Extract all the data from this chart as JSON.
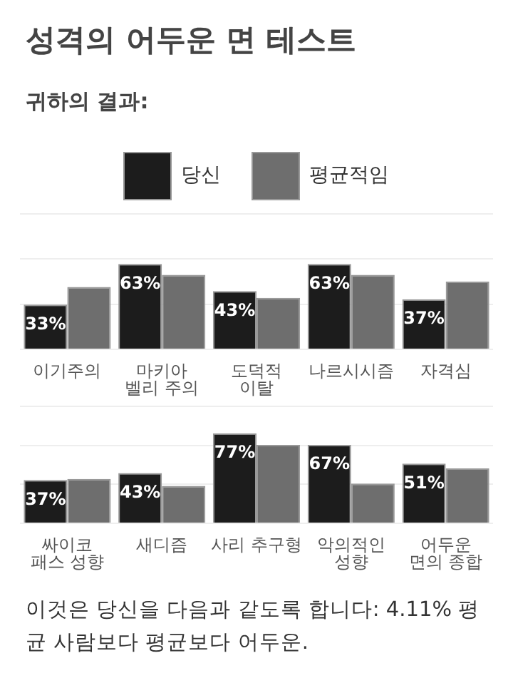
{
  "chart_data": [
    {
      "type": "bar",
      "title": "성격의 어두운 면 테스트",
      "subtitle": "귀하의 결과:",
      "categories": [
        "이기주의",
        "마키아\n벨리 주의",
        "도덕적\n이탈",
        "나르시시즘",
        "자격심"
      ],
      "series": [
        {
          "name": "당신",
          "color": "#1c1c1c",
          "values": [
            33,
            63,
            43,
            63,
            37
          ],
          "value_labels": [
            "33%",
            "63%",
            "43%",
            "63%",
            "37%"
          ]
        },
        {
          "name": "평균적임",
          "color": "#6e6e6e",
          "values": [
            46,
            55,
            38,
            55,
            50
          ]
        }
      ],
      "ylim": [
        0,
        100
      ],
      "yticks": [
        {
          "value": 0,
          "label": null
        },
        {
          "value": 33.3,
          "label": null
        },
        {
          "value": 66.7,
          "label": null
        },
        {
          "value": 100,
          "label": null
        }
      ],
      "grid": "y",
      "tick_labels": "x",
      "legend": "top"
    },
    {
      "type": "bar",
      "categories": [
        "싸이코\n패스 성향",
        "새디즘",
        "사리 추구형",
        "악의적인\n성향",
        "어두운\n면의 종합"
      ],
      "series": [
        {
          "color": "#1c1c1c",
          "values": [
            37,
            43,
            77,
            67,
            51
          ],
          "value_labels": [
            "37%",
            "43%",
            "77%",
            "67%",
            "51%"
          ]
        },
        {
          "color": "#6e6e6e",
          "values": [
            38,
            32,
            67,
            34,
            47
          ]
        }
      ],
      "ylim": [
        0,
        100
      ],
      "yticks": [
        {
          "value": 0,
          "label": null
        },
        {
          "value": 33.3,
          "label": null
        },
        {
          "value": 66.7,
          "label": null
        },
        {
          "value": 100,
          "label": null
        }
      ],
      "grid": "y",
      "tick_labels": "x",
      "annotations": [
        "이것은 당신을 다음과 같도록 합니다: 4.11% 평균 사람보다 평균보다 어두운."
      ]
    }
  ]
}
